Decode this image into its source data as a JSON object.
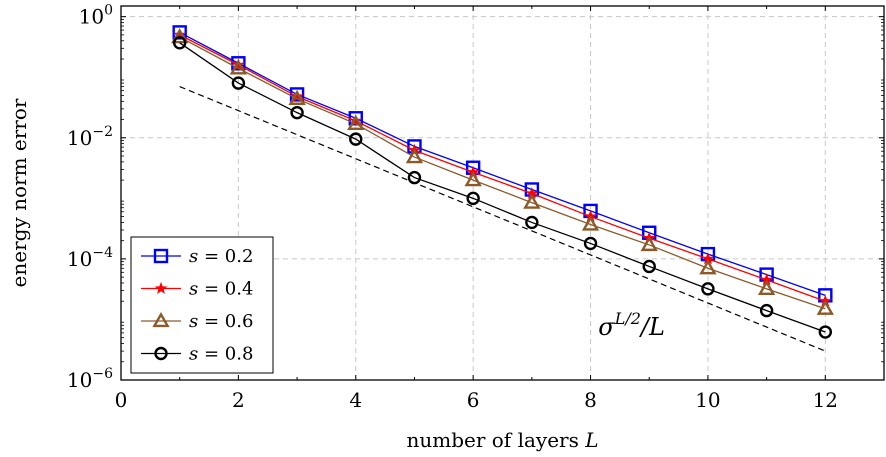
{
  "chart_data": {
    "type": "line",
    "xlabel": "number of layers L",
    "ylabel": "energy norm error",
    "x_scale": "linear",
    "y_scale": "log",
    "xlim": [
      0,
      13
    ],
    "ylim": [
      1e-06,
      1.5
    ],
    "x_ticks": [
      0,
      2,
      4,
      6,
      8,
      10,
      12
    ],
    "x_tick_labels": [
      "0",
      "2",
      "4",
      "6",
      "8",
      "10",
      "12"
    ],
    "y_ticks": [
      1e-06,
      0.0001,
      0.01,
      1
    ],
    "y_tick_labels": [
      {
        "base": "10",
        "exp": "−6"
      },
      {
        "base": "10",
        "exp": "−4"
      },
      {
        "base": "10",
        "exp": "−2"
      },
      {
        "base": "10",
        "exp": "0"
      }
    ],
    "grid": true,
    "legend_position": "bottom-left",
    "x": [
      1,
      2,
      3,
      4,
      5,
      6,
      7,
      8,
      9,
      10,
      11,
      12
    ],
    "series": [
      {
        "name": "s = 0.2",
        "legend_var": "s",
        "legend_value": "0.2",
        "color": "#0000ff",
        "marker": "square",
        "values": [
          0.55,
          0.17,
          0.052,
          0.021,
          0.0072,
          0.0032,
          0.0014,
          0.00062,
          0.00027,
          0.00012,
          5.5e-05,
          2.5e-05
        ]
      },
      {
        "name": "s = 0.4",
        "legend_var": "s",
        "legend_value": "0.4",
        "color": "#ff0000",
        "marker": "star",
        "values": [
          0.5,
          0.16,
          0.048,
          0.019,
          0.0062,
          0.0027,
          0.0012,
          0.0005,
          0.00022,
          0.0001,
          4.5e-05,
          2e-05
        ]
      },
      {
        "name": "s = 0.6",
        "legend_var": "s",
        "legend_value": "0.6",
        "color": "#8b5a2b",
        "marker": "triangle",
        "values": [
          0.46,
          0.14,
          0.044,
          0.017,
          0.0048,
          0.002,
          0.00085,
          0.00037,
          0.00017,
          7e-05,
          3.2e-05,
          1.5e-05
        ]
      },
      {
        "name": "s = 0.8",
        "legend_var": "s",
        "legend_value": "0.8",
        "color": "#000000",
        "marker": "circle",
        "values": [
          0.37,
          0.08,
          0.026,
          0.0095,
          0.0022,
          0.001,
          0.0004,
          0.00018,
          7.5e-05,
          3.2e-05,
          1.4e-05,
          6.2e-06
        ]
      }
    ],
    "reference_line": {
      "style": "dashed",
      "color": "#000000",
      "label_base": "σ",
      "label_exp": "L/2",
      "label_tail": "/L",
      "x": [
        1,
        12
      ],
      "y": [
        0.07,
        3e-06
      ]
    }
  }
}
